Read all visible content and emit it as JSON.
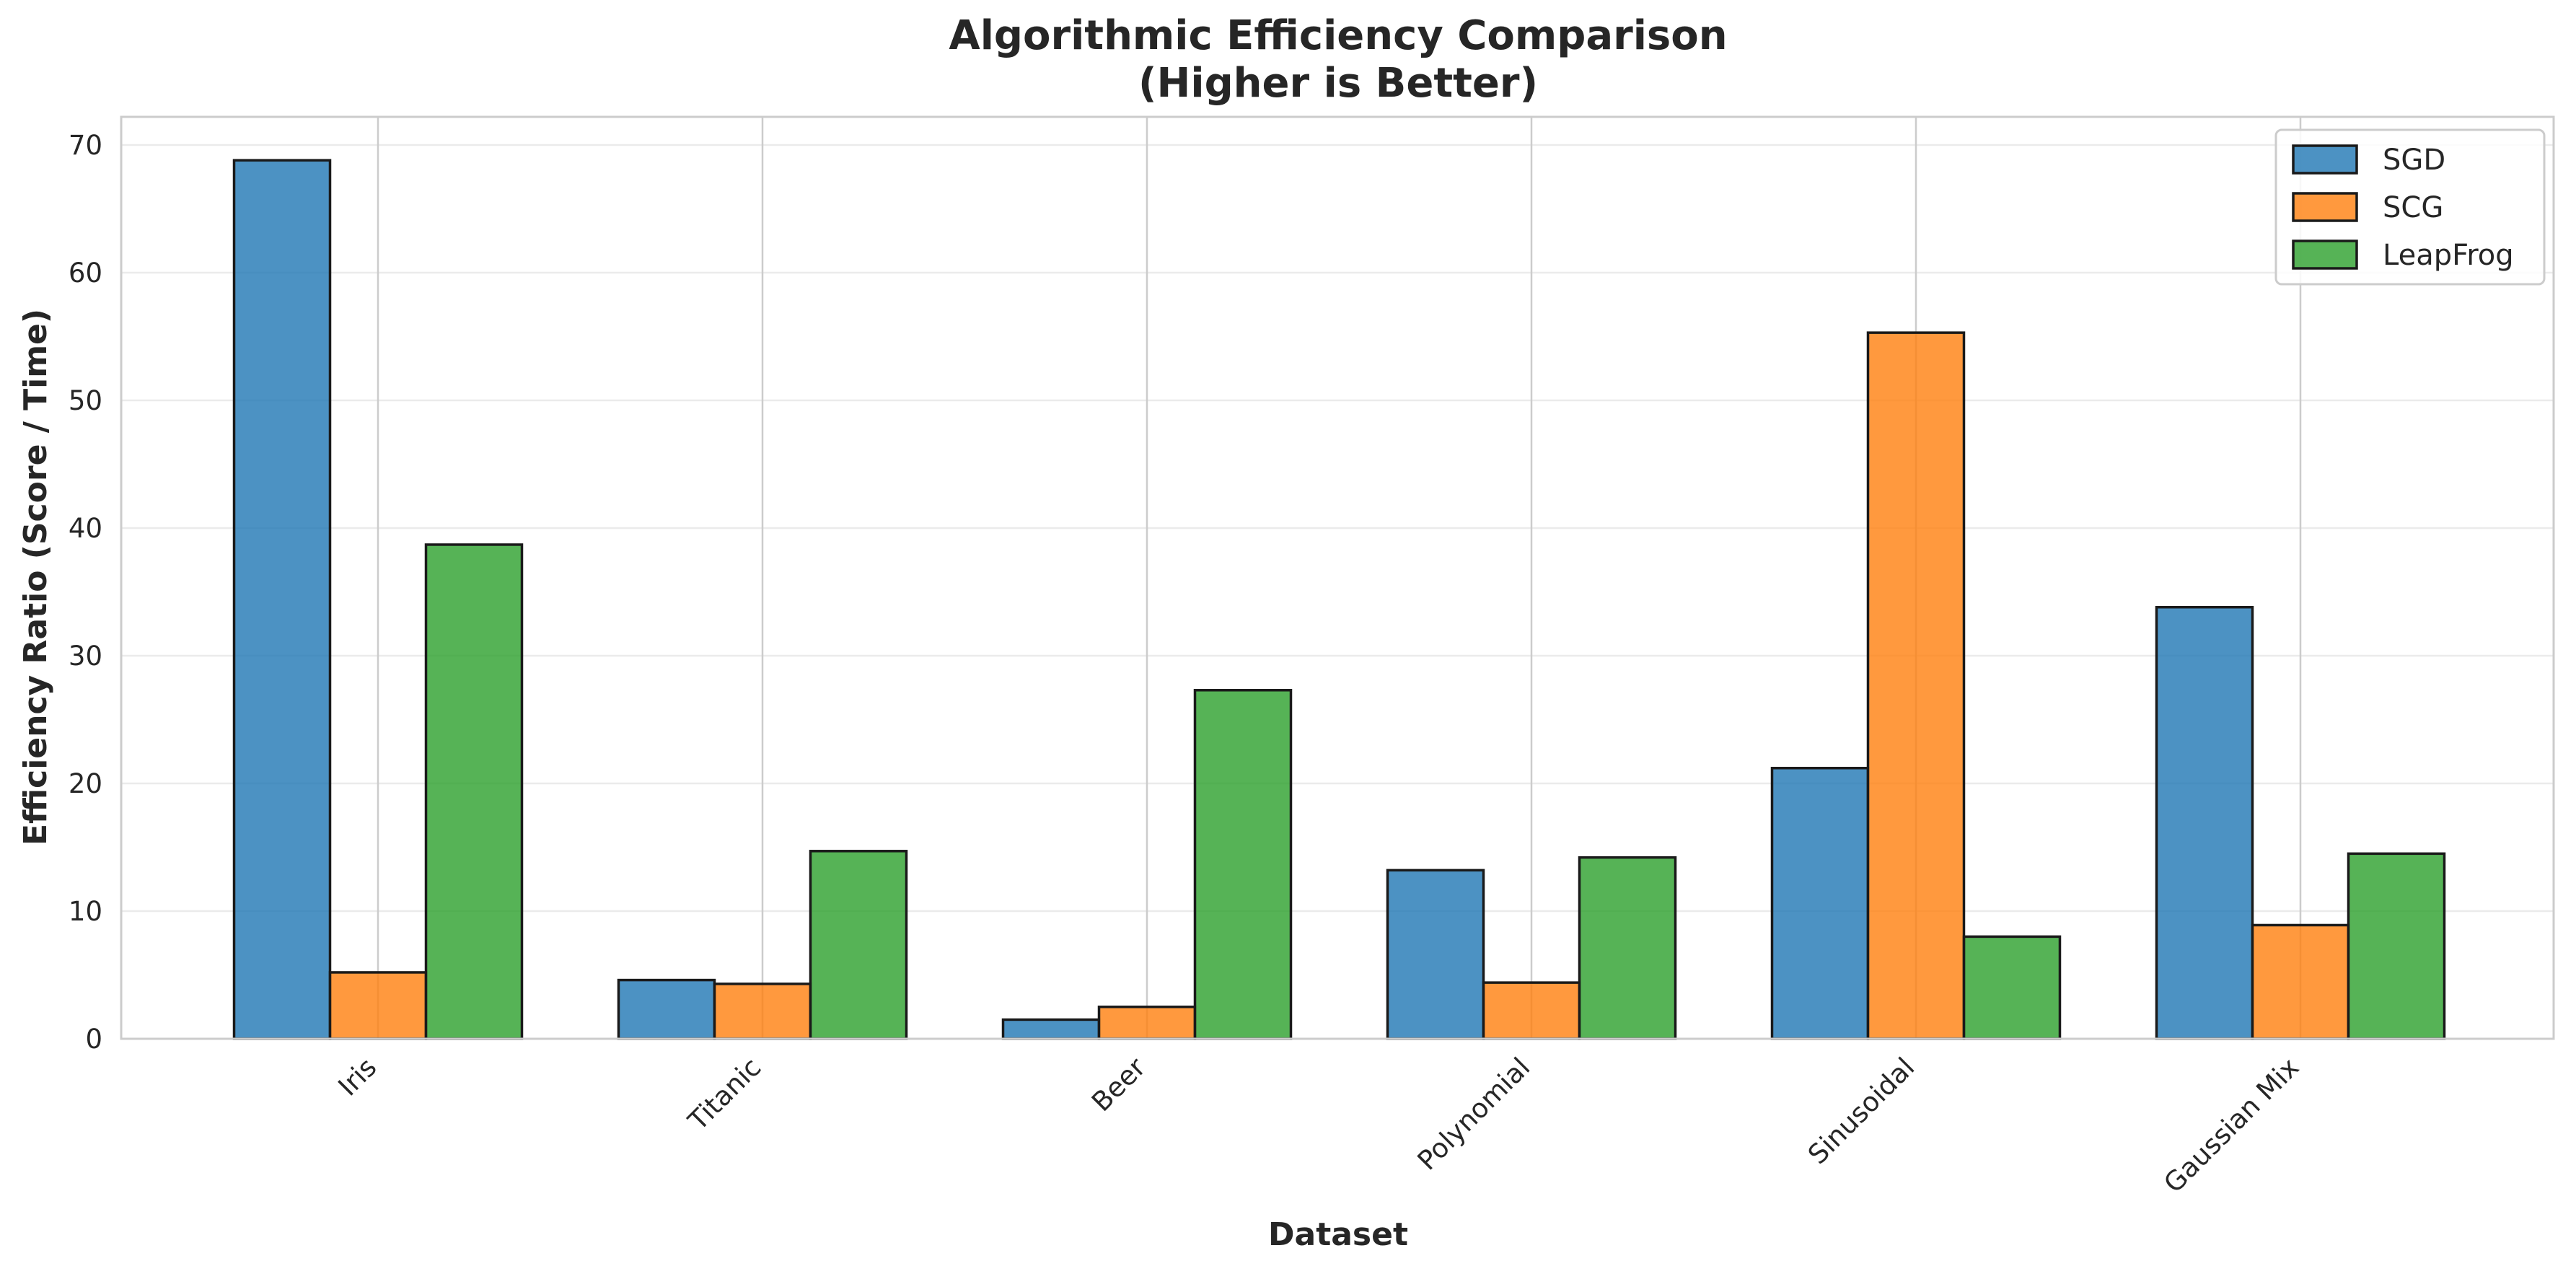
{
  "chart_data": {
    "type": "bar",
    "title_line1": "Algorithmic Efficiency Comparison",
    "title_line2": "(Higher is Better)",
    "xlabel": "Dataset",
    "ylabel": "Efficiency Ratio (Score / Time)",
    "categories": [
      "Iris",
      "Titanic",
      "Beer",
      "Polynomial",
      "Sinusoidal",
      "Gaussian Mix"
    ],
    "series": [
      {
        "name": "SGD",
        "color": "#1f77b4",
        "values": [
          68.8,
          4.6,
          1.5,
          13.2,
          21.2,
          33.8
        ]
      },
      {
        "name": "SCG",
        "color": "#ff7f0e",
        "values": [
          5.2,
          4.3,
          2.5,
          4.4,
          55.3,
          8.9
        ]
      },
      {
        "name": "LeapFrog",
        "color": "#2ca02c",
        "values": [
          38.7,
          14.7,
          27.3,
          14.2,
          8.0,
          14.5
        ]
      }
    ],
    "ylim": [
      0,
      72.2
    ],
    "yticks": [
      0,
      10,
      20,
      30,
      40,
      50,
      60,
      70
    ],
    "grid": true,
    "legend_position": "top-right"
  }
}
